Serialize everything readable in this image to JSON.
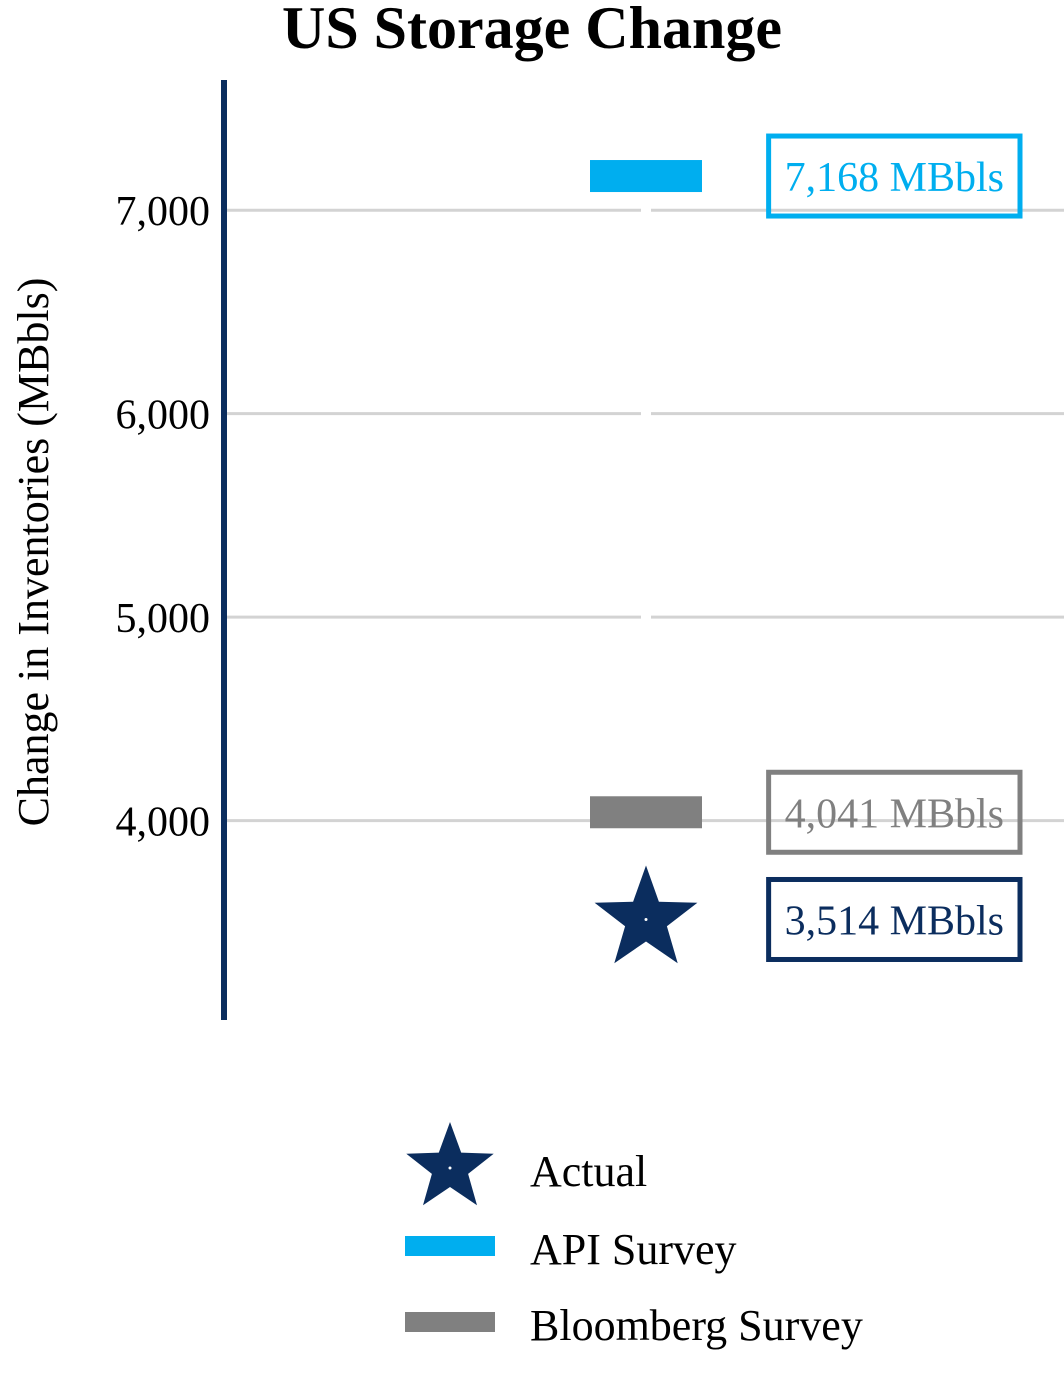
{
  "chart_data": {
    "type": "scatter",
    "title": "US Storage Change",
    "ylabel": "Change in Inventories (MBbls)",
    "xlabel": "",
    "ylim": [
      3020,
      7640
    ],
    "yticks": [
      4000,
      5000,
      6000,
      7000
    ],
    "ytick_labels": [
      "4,000",
      "5,000",
      "6,000",
      "7,000"
    ],
    "grid": true,
    "legend_position": "bottom",
    "series": [
      {
        "name": "Actual",
        "marker": "star",
        "color": "#0b2d5e",
        "value": 3514,
        "label": "3,514 MBbls"
      },
      {
        "name": "API Survey",
        "marker": "bar",
        "color": "#00aeef",
        "value": 7168,
        "label": "7,168 MBbls"
      },
      {
        "name": "Bloomberg Survey",
        "marker": "bar",
        "color": "#808080",
        "value": 4041,
        "label": "4,041 MBbls"
      }
    ]
  }
}
